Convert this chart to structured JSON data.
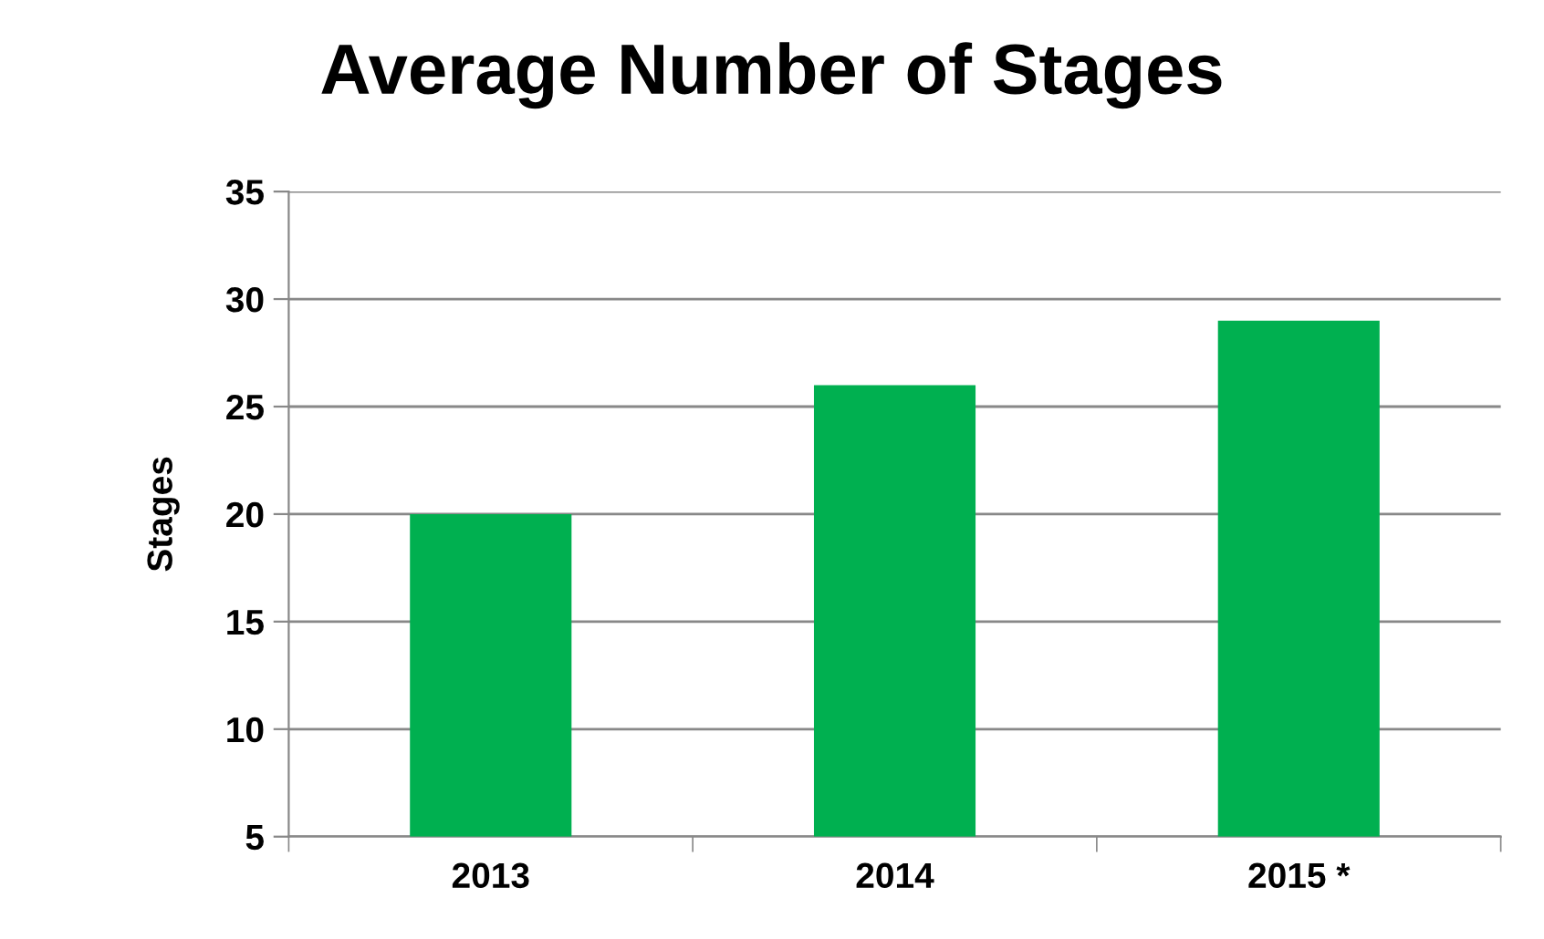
{
  "chart_data": {
    "type": "bar",
    "title": "Average Number of Stages",
    "ylabel": "Stages",
    "categories": [
      "2013",
      "2014",
      "2015 *"
    ],
    "values": [
      20,
      26,
      29
    ],
    "color": "#00b050",
    "ylim": [
      5,
      35
    ],
    "yticks": [
      5,
      10,
      15,
      20,
      25,
      30,
      35
    ],
    "grid": "y",
    "legend": false
  }
}
